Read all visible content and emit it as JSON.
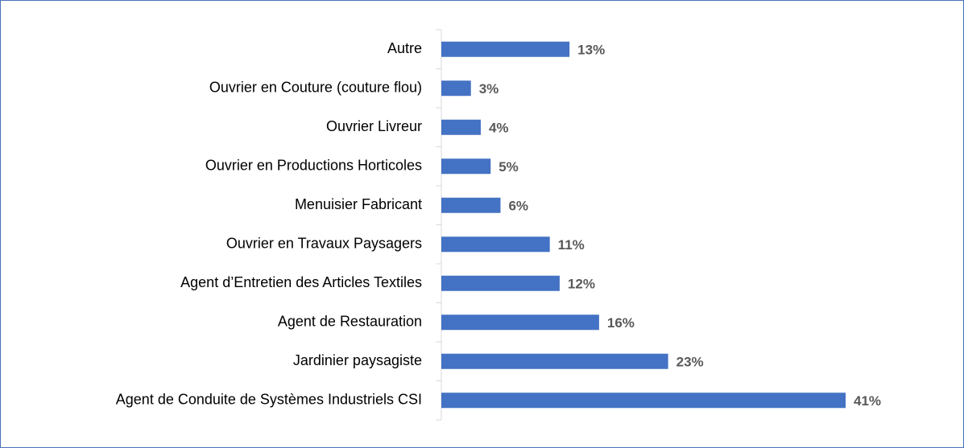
{
  "chart_data": {
    "type": "bar",
    "orientation": "horizontal",
    "categories": [
      "Autre",
      "Ouvrier en Couture (couture flou)",
      "Ouvrier Livreur",
      "Ouvrier en Productions Horticoles",
      "Menuisier Fabricant",
      "Ouvrier en Travaux Paysagers",
      "Agent d’Entretien des Articles Textiles",
      "Agent de Restauration",
      "Jardinier paysagiste",
      "Agent de Conduite de Systèmes Industriels CSI"
    ],
    "values": [
      13,
      3,
      4,
      5,
      6,
      11,
      12,
      16,
      23,
      41
    ],
    "value_labels": [
      "13%",
      "3%",
      "4%",
      "5%",
      "6%",
      "11%",
      "12%",
      "16%",
      "23%",
      "41%"
    ],
    "color": "#4472c4",
    "xlim": [
      0,
      41
    ]
  }
}
